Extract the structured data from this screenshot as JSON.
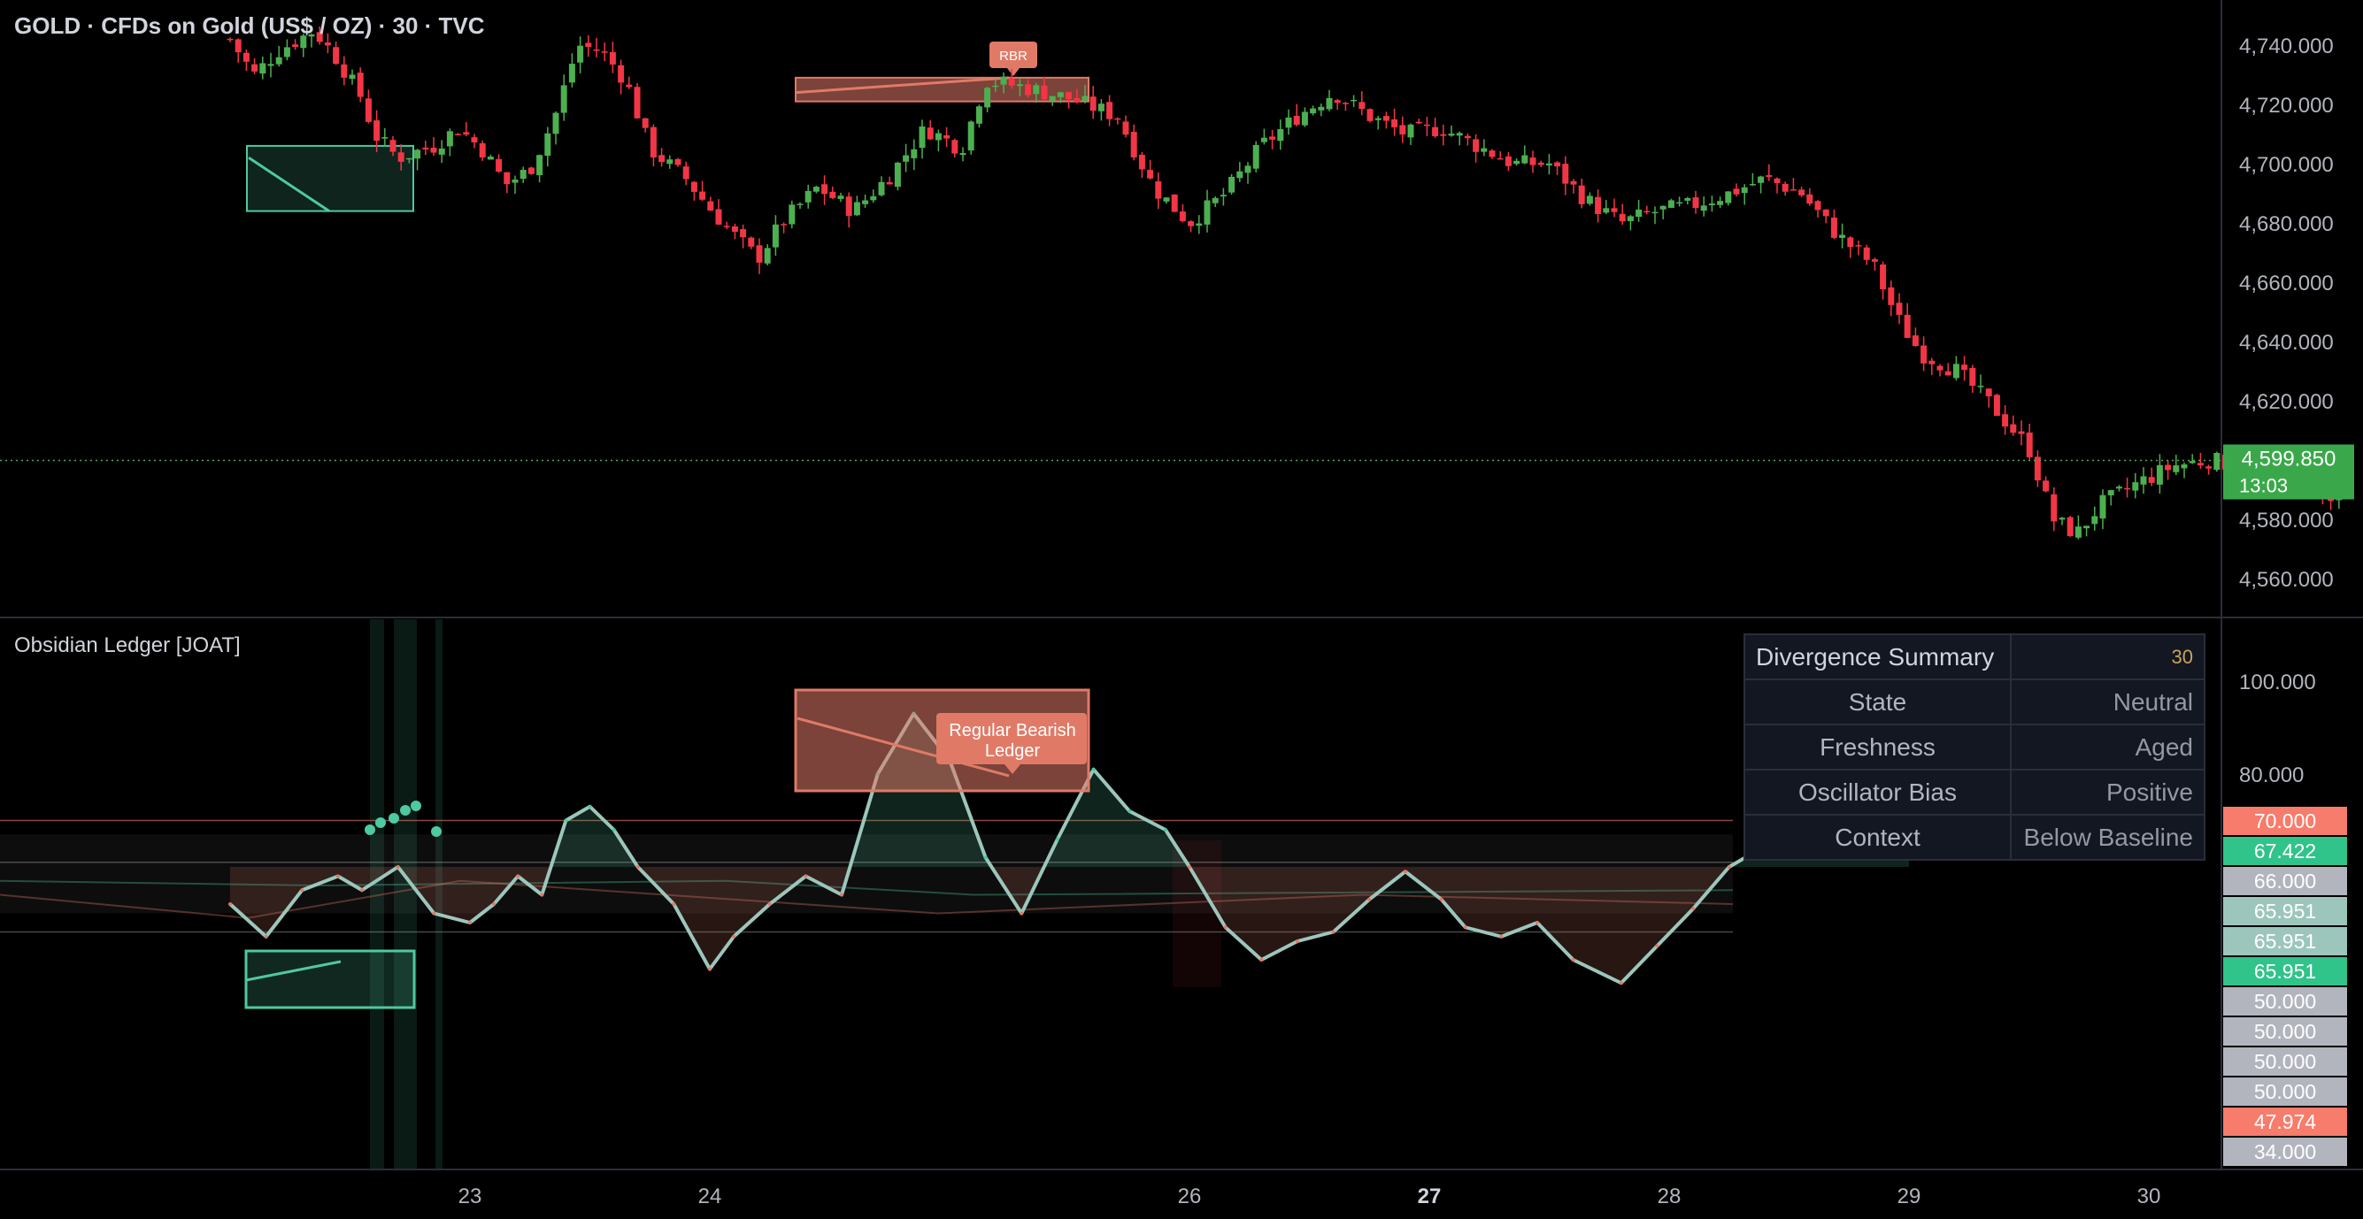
{
  "header": {
    "symbol": "GOLD · CFDs on Gold (US$ / OZ) · 30 · TVC"
  },
  "indicator": {
    "title": "Obsidian Ledger [JOAT]"
  },
  "summary": {
    "title": "Divergence Summary",
    "timeframe": "30",
    "rows": [
      {
        "key": "State",
        "value": "Neutral"
      },
      {
        "key": "Freshness",
        "value": "Aged"
      },
      {
        "key": "Oscillator Bias",
        "value": "Positive"
      },
      {
        "key": "Context",
        "value": "Below Baseline"
      }
    ]
  },
  "colors": {
    "up": "#4caf50",
    "down": "#f23645",
    "teal": "#4ec9a0",
    "salmon": "#e07a67",
    "price_badge": "#3aa84a",
    "grid_line": "#2a2e39"
  },
  "chart_data": [
    {
      "type": "candlestick",
      "title": "GOLD · CFDs on Gold (US$ / OZ) · 30 · TVC",
      "ylim": [
        4550,
        4750
      ],
      "y_ticks": [
        4740,
        4720,
        4700,
        4680,
        4660,
        4640,
        4620,
        4580,
        4560
      ],
      "y_tick_labels": [
        "4,740.000",
        "4,720.000",
        "4,700.000",
        "4,680.000",
        "4,660.000",
        "4,640.000",
        "4,620.000",
        "4,580.000",
        "4,560.000"
      ],
      "last_price": 4599.85,
      "last_price_label": "4,599.850",
      "countdown": "13:03",
      "close_path": [
        [
          22.0,
          4742
        ],
        [
          22.1,
          4730
        ],
        [
          22.2,
          4738
        ],
        [
          22.35,
          4745
        ],
        [
          22.45,
          4735
        ],
        [
          22.55,
          4722
        ],
        [
          22.6,
          4710
        ],
        [
          22.7,
          4702
        ],
        [
          22.85,
          4706
        ],
        [
          22.95,
          4712
        ],
        [
          23.05,
          4705
        ],
        [
          23.15,
          4693
        ],
        [
          23.25,
          4698
        ],
        [
          23.35,
          4715
        ],
        [
          23.45,
          4740
        ],
        [
          23.55,
          4738
        ],
        [
          23.65,
          4728
        ],
        [
          23.75,
          4705
        ],
        [
          23.9,
          4695
        ],
        [
          24.0,
          4685
        ],
        [
          24.1,
          4676
        ],
        [
          24.2,
          4668
        ],
        [
          24.3,
          4680
        ],
        [
          24.45,
          4692
        ],
        [
          24.6,
          4684
        ],
        [
          24.75,
          4696
        ],
        [
          24.9,
          4712
        ],
        [
          25.05,
          4705
        ],
        [
          25.15,
          4728
        ],
        [
          25.3,
          4726
        ],
        [
          25.5,
          4722
        ],
        [
          25.7,
          4716
        ],
        [
          25.85,
          4692
        ],
        [
          26.0,
          4680
        ],
        [
          26.15,
          4690
        ],
        [
          26.3,
          4706
        ],
        [
          26.45,
          4716
        ],
        [
          26.6,
          4724
        ],
        [
          26.75,
          4716
        ],
        [
          26.9,
          4710
        ],
        [
          27.05,
          4712
        ],
        [
          27.2,
          4706
        ],
        [
          27.35,
          4700
        ],
        [
          27.5,
          4700
        ],
        [
          27.65,
          4688
        ],
        [
          27.8,
          4680
        ],
        [
          27.95,
          4684
        ],
        [
          28.1,
          4686
        ],
        [
          28.25,
          4690
        ],
        [
          28.4,
          4695
        ],
        [
          28.55,
          4690
        ],
        [
          28.7,
          4676
        ],
        [
          28.85,
          4666
        ],
        [
          28.95,
          4648
        ],
        [
          29.05,
          4636
        ],
        [
          29.2,
          4630
        ],
        [
          29.35,
          4618
        ],
        [
          29.5,
          4604
        ],
        [
          29.6,
          4580
        ],
        [
          29.7,
          4575
        ],
        [
          29.8,
          4585
        ],
        [
          29.95,
          4592
        ],
        [
          30.1,
          4598
        ],
        [
          30.25,
          4600
        ],
        [
          30.4,
          4598
        ],
        [
          30.55,
          4596
        ],
        [
          30.65,
          4598
        ],
        [
          30.75,
          4585
        ],
        [
          30.85,
          4599.85
        ]
      ],
      "annotations": [
        "RBR"
      ]
    },
    {
      "type": "line",
      "title": "Obsidian Ledger [JOAT]",
      "ylim": [
        25,
        105
      ],
      "y_ticks": [
        100,
        80
      ],
      "y_tick_labels": [
        "100.000",
        "80.000"
      ],
      "level_labels": [
        {
          "value": 70.0,
          "label": "70.000",
          "color": "#f77c6b"
        },
        {
          "value": 67.422,
          "label": "67.422",
          "color": "#30c38a"
        },
        {
          "value": 66.0,
          "label": "66.000",
          "color": "#b2b5be"
        },
        {
          "value": 65.951,
          "label": "65.951",
          "color": "#9cc6bc"
        },
        {
          "value": 65.951,
          "label": "65.951",
          "color": "#9cc6bc"
        },
        {
          "value": 65.951,
          "label": "65.951",
          "color": "#30c38a"
        },
        {
          "value": 50.0,
          "label": "50.000",
          "color": "#b2b5be"
        },
        {
          "value": 50.0,
          "label": "50.000",
          "color": "#b2b5be"
        },
        {
          "value": 50.0,
          "label": "50.000",
          "color": "#b2b5be"
        },
        {
          "value": 50.0,
          "label": "50.000",
          "color": "#b2b5be"
        },
        {
          "value": 47.974,
          "label": "47.974",
          "color": "#f77c6b"
        },
        {
          "value": 34.0,
          "label": "34.000",
          "color": "#b2b5be"
        }
      ],
      "bands": {
        "upper": 66,
        "lower": 50,
        "overbought": 70,
        "oversold": 34,
        "midline": 60
      },
      "series": [
        {
          "values": [
            [
              22.0,
              52
            ],
            [
              22.15,
              45
            ],
            [
              22.3,
              55
            ],
            [
              22.45,
              58
            ],
            [
              22.55,
              55
            ],
            [
              22.7,
              60
            ],
            [
              22.85,
              50
            ],
            [
              23.0,
              48
            ],
            [
              23.1,
              52
            ],
            [
              23.2,
              58
            ],
            [
              23.3,
              54
            ],
            [
              23.4,
              70
            ],
            [
              23.5,
              73
            ],
            [
              23.6,
              68
            ],
            [
              23.7,
              60
            ],
            [
              23.85,
              52
            ],
            [
              24.0,
              38
            ],
            [
              24.1,
              45
            ],
            [
              24.25,
              52
            ],
            [
              24.4,
              58
            ],
            [
              24.55,
              54
            ],
            [
              24.7,
              80
            ],
            [
              24.85,
              93
            ],
            [
              25.0,
              83
            ],
            [
              25.15,
              62
            ],
            [
              25.3,
              50
            ],
            [
              25.45,
              66
            ],
            [
              25.6,
              81
            ],
            [
              25.75,
              72
            ],
            [
              25.9,
              68
            ],
            [
              26.0,
              60
            ],
            [
              26.15,
              47
            ],
            [
              26.3,
              40
            ],
            [
              26.45,
              44
            ],
            [
              26.6,
              46
            ],
            [
              26.75,
              53
            ],
            [
              26.9,
              59
            ],
            [
              27.05,
              53
            ],
            [
              27.15,
              47
            ],
            [
              27.3,
              45
            ],
            [
              27.45,
              48
            ],
            [
              27.6,
              40
            ],
            [
              27.8,
              35
            ],
            [
              27.95,
              43
            ],
            [
              28.1,
              51
            ],
            [
              28.25,
              60
            ],
            [
              28.45,
              66
            ],
            [
              28.6,
              70
            ],
            [
              28.75,
              67
            ],
            [
              28.85,
              72
            ],
            [
              29.0,
              63
            ]
          ]
        }
      ],
      "annotations": [
        "Regular Bearish",
        "Ledger"
      ]
    }
  ],
  "x_axis": {
    "labels": [
      {
        "value": 23,
        "text": "23",
        "bold": false
      },
      {
        "value": 24,
        "text": "24",
        "bold": false
      },
      {
        "value": 26,
        "text": "26",
        "bold": false
      },
      {
        "value": 27,
        "text": "27",
        "bold": true
      },
      {
        "value": 28,
        "text": "28",
        "bold": false
      },
      {
        "value": 29,
        "text": "29",
        "bold": false
      },
      {
        "value": 30,
        "text": "30",
        "bold": false
      }
    ]
  }
}
